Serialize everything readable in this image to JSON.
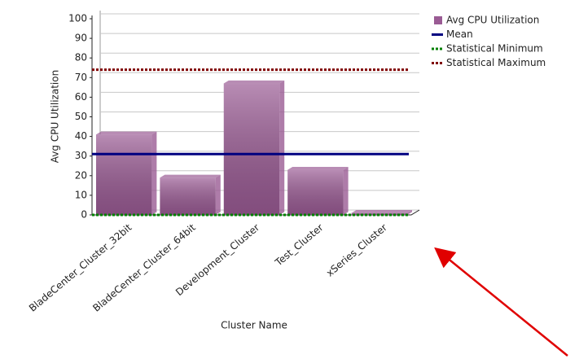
{
  "chart_data": {
    "type": "bar",
    "categories": [
      "BladeCenter_Cluster_32bit",
      "BladeCenter_Cluster_64bit",
      "Development_Cluster",
      "Test_Cluster",
      "xSeries_Cluster"
    ],
    "series": [
      {
        "name": "Avg CPU Utilization",
        "color": "#9a5b94",
        "values": [
          41,
          19,
          67,
          23,
          1
        ]
      }
    ],
    "lines": [
      {
        "name": "Mean",
        "value": 31,
        "color": "#000080",
        "dash": "solid"
      },
      {
        "name": "Statistical Minimum",
        "value": 0,
        "color": "#008000",
        "dash": "dotted"
      },
      {
        "name": "Statistical Maximum",
        "value": 74,
        "color": "#800000",
        "dash": "dotted"
      }
    ],
    "x_label": "Cluster Name",
    "y_label": "Avg CPU Utilization",
    "ylim": [
      0,
      100
    ],
    "yticks": [
      0,
      10,
      20,
      30,
      40,
      50,
      60,
      70,
      80,
      90,
      100
    ],
    "grid": true,
    "legend": "right"
  }
}
